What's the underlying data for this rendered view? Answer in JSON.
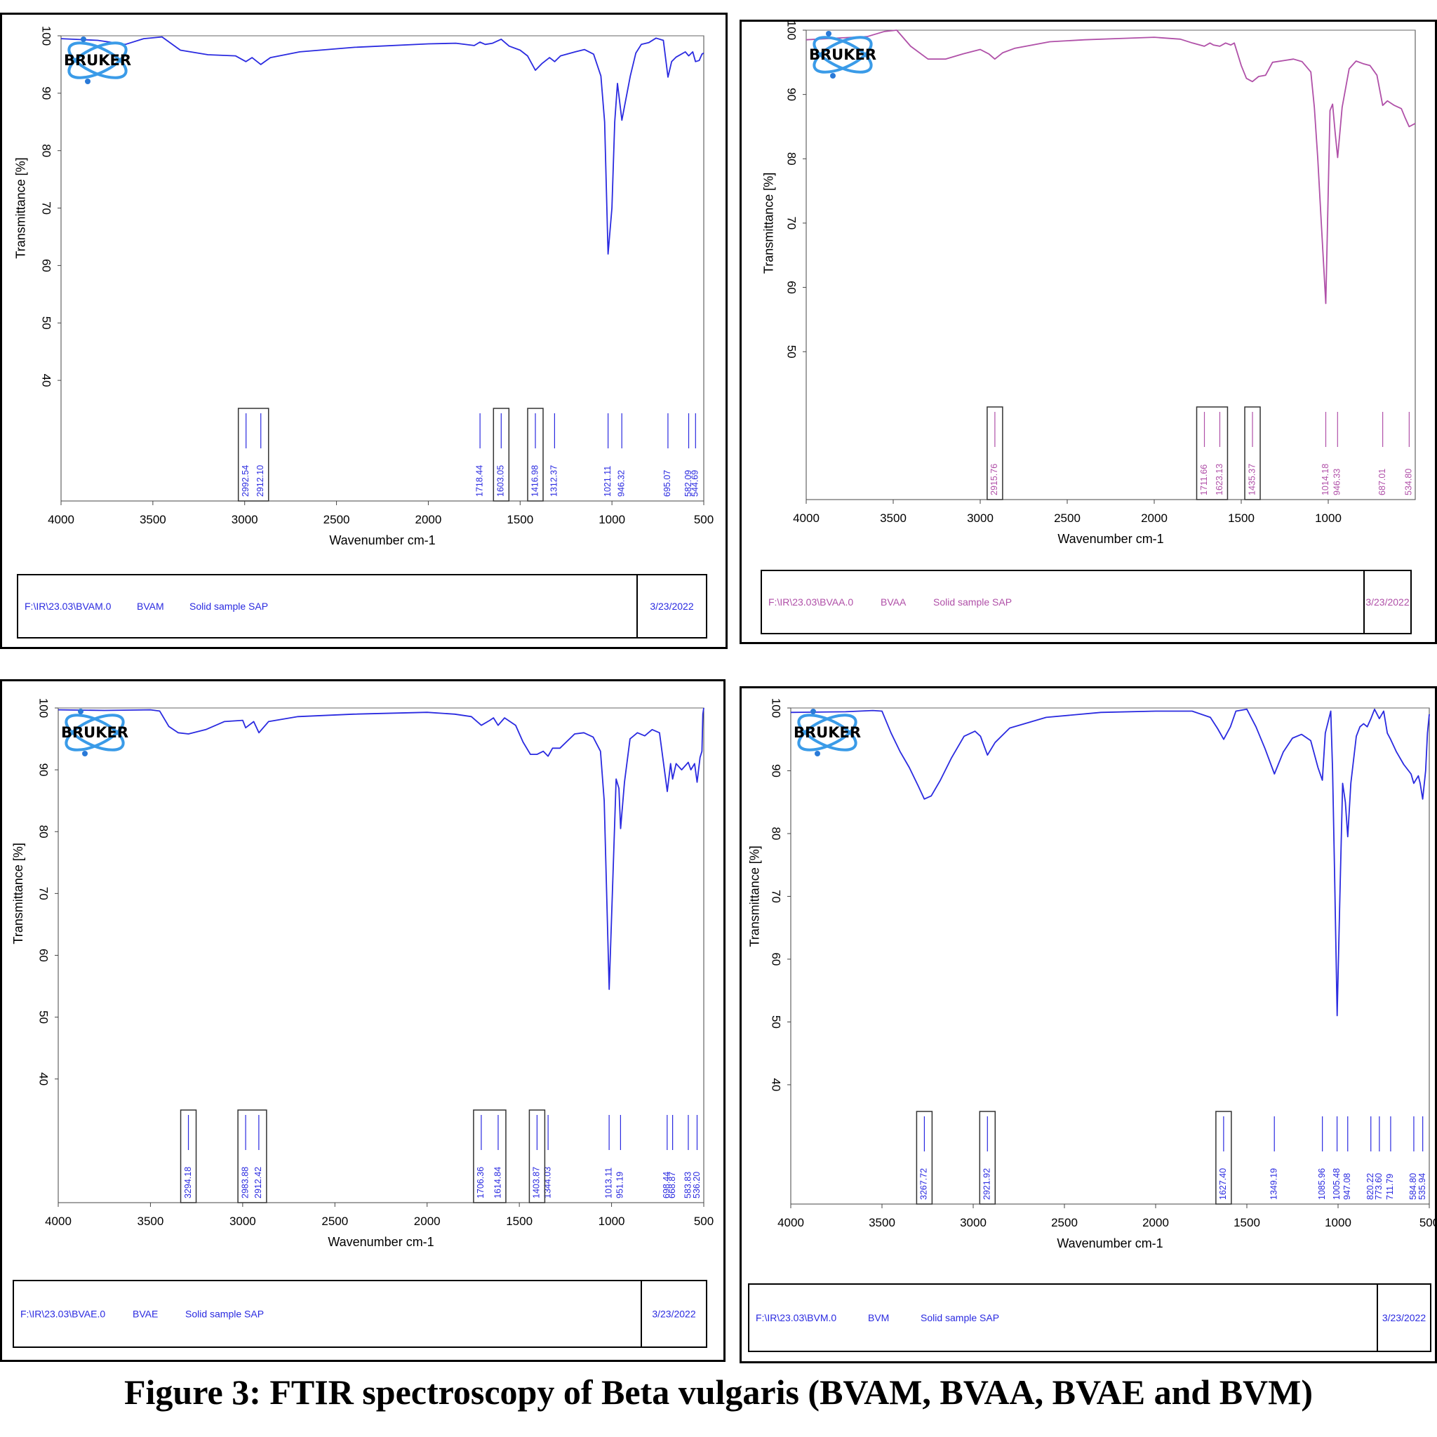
{
  "caption": "Figure 3: FTIR spectroscopy of Beta vulgaris (BVAM, BVAA, BVAE and BVM)",
  "logo_text": "BRUKER",
  "chart_data": [
    {
      "type": "line",
      "sample": "BVAM",
      "color": "#2a2ae0",
      "xlabel": "Wavenumber cm-1",
      "ylabel": "Transmittance [%]",
      "xlim": [
        4000,
        500
      ],
      "ylim": [
        19,
        100
      ],
      "x_ticks": [
        "4000",
        "3500",
        "3000",
        "2500",
        "2000",
        "1500",
        "1000",
        "500"
      ],
      "y_ticks": [
        "100",
        "90",
        "80",
        "70",
        "60",
        "50",
        "40"
      ],
      "series": [
        {
          "x": [
            4000,
            3800,
            3650,
            3550,
            3450,
            3350,
            3200,
            3050,
            2993,
            2960,
            2912,
            2860,
            2700,
            2400,
            2000,
            1850,
            1750,
            1719,
            1690,
            1650,
            1603,
            1560,
            1500,
            1460,
            1417,
            1380,
            1340,
            1312,
            1280,
            1200,
            1150,
            1100,
            1060,
            1040,
            1021,
            1000,
            985,
            970,
            946,
            930,
            900,
            870,
            840,
            800,
            760,
            720,
            695,
            675,
            650,
            600,
            582,
            560,
            545,
            525,
            510,
            500
          ],
          "y": [
            99.5,
            99.2,
            98.5,
            99.5,
            99.8,
            97.5,
            96.7,
            96.5,
            95.5,
            96.2,
            95,
            96.2,
            97.2,
            98,
            98.6,
            98.7,
            98.3,
            98.9,
            98.5,
            98.7,
            99.4,
            98.2,
            97.5,
            96.5,
            94,
            95.2,
            96.2,
            95.5,
            96.5,
            97.2,
            97.6,
            96.8,
            93,
            85,
            62,
            70,
            85,
            91.7,
            85.3,
            88,
            93,
            97,
            98.5,
            98.8,
            99.6,
            99.2,
            92.8,
            95.5,
            96.3,
            97.2,
            96.5,
            97.2,
            95.5,
            95.7,
            96.8,
            97
          ]
        }
      ],
      "peak_labels": [
        "2992.54",
        "2912.10",
        "1718.44",
        "1603.05",
        "1416.98",
        "1312.37",
        "1021.11",
        "946.32",
        "695.07",
        "582.09",
        "544.69"
      ],
      "peak_x": [
        2992.54,
        2912.1,
        1718.44,
        1603.05,
        1416.98,
        1312.37,
        1021.11,
        946.32,
        695.07,
        582.09,
        544.69
      ],
      "boxed_groups": [
        [
          "2992.54",
          "2912.10"
        ],
        [
          "1603.05"
        ],
        [
          "1416.98"
        ]
      ],
      "footer": {
        "path": "F:\\IR\\23.03\\BVAM.0",
        "sample": "BVAM",
        "description": "Solid sample SAP",
        "date": "3/23/2022"
      }
    },
    {
      "type": "line",
      "sample": "BVAA",
      "color": "#b050a8",
      "xlabel": "Wavenumber cm-1",
      "ylabel": "Transmittance [%]",
      "xlim": [
        4000,
        500
      ],
      "ylim": [
        27,
        100
      ],
      "x_ticks": [
        "4000",
        "3500",
        "3000",
        "2500",
        "2000",
        "1500",
        "1000"
      ],
      "y_ticks": [
        "100",
        "90",
        "80",
        "70",
        "60",
        "50"
      ],
      "series": [
        {
          "x": [
            4000,
            3800,
            3650,
            3550,
            3480,
            3400,
            3300,
            3200,
            3100,
            3000,
            2950,
            2916,
            2870,
            2800,
            2600,
            2400,
            2200,
            2000,
            1850,
            1780,
            1712,
            1680,
            1660,
            1623,
            1590,
            1560,
            1540,
            1500,
            1470,
            1436,
            1400,
            1360,
            1320,
            1250,
            1200,
            1150,
            1100,
            1080,
            1060,
            1040,
            1014,
            1000,
            990,
            975,
            960,
            946,
            920,
            880,
            840,
            800,
            760,
            720,
            687,
            660,
            620,
            580,
            560,
            535,
            500
          ],
          "y": [
            98.5,
            98.8,
            99,
            99.8,
            100,
            97.5,
            95.5,
            95.5,
            96.3,
            97,
            96.3,
            95.5,
            96.5,
            97.2,
            98.2,
            98.5,
            98.7,
            98.9,
            98.6,
            98,
            97.5,
            98,
            97.7,
            97.5,
            98,
            97.7,
            98,
            94.5,
            92.5,
            92,
            92.8,
            93,
            95,
            95.3,
            95.5,
            95.1,
            93.5,
            88,
            80,
            70,
            57.5,
            75,
            87.5,
            88.5,
            84,
            80.2,
            88,
            94,
            95.2,
            94.8,
            94.5,
            93,
            88.3,
            89,
            88.3,
            87.8,
            86.5,
            85,
            85.5
          ]
        }
      ],
      "peak_labels": [
        "2915.76",
        "1711.66",
        "1623.13",
        "1435.37",
        "1014.18",
        "946.33",
        "687.01",
        "534.80"
      ],
      "peak_x": [
        2915.76,
        1711.66,
        1623.13,
        1435.37,
        1014.18,
        946.33,
        687.01,
        534.8
      ],
      "boxed_groups": [
        [
          "2915.76"
        ],
        [
          "1711.66",
          "1623.13"
        ],
        [
          "1435.37"
        ]
      ],
      "footer": {
        "path": "F:\\IR\\23.03\\BVAA.0",
        "sample": "BVAA",
        "description": "Solid sample SAP",
        "date": "3/23/2022"
      }
    },
    {
      "type": "line",
      "sample": "BVAE",
      "color": "#2a2ae0",
      "xlabel": "Wavenumber cm-1",
      "ylabel": "Transmittance [%]",
      "xlim": [
        4000,
        500
      ],
      "ylim": [
        20,
        100
      ],
      "x_ticks": [
        "4000",
        "3500",
        "3000",
        "2500",
        "2000",
        "1500",
        "1000",
        "500"
      ],
      "y_ticks": [
        "100",
        "90",
        "80",
        "70",
        "60",
        "50",
        "40"
      ],
      "series": [
        {
          "x": [
            4000,
            3750,
            3500,
            3450,
            3400,
            3350,
            3294,
            3200,
            3100,
            3000,
            2984,
            2940,
            2912,
            2860,
            2700,
            2400,
            2000,
            1850,
            1760,
            1706,
            1660,
            1640,
            1615,
            1580,
            1520,
            1480,
            1440,
            1404,
            1370,
            1344,
            1320,
            1280,
            1200,
            1150,
            1100,
            1060,
            1040,
            1013,
            990,
            975,
            960,
            951,
            930,
            900,
            860,
            820,
            780,
            740,
            698,
            680,
            669,
            650,
            620,
            584,
            570,
            550,
            536,
            520,
            510,
            505,
            500
          ],
          "y": [
            99.7,
            99.6,
            99.7,
            99.5,
            97,
            96,
            95.8,
            96.5,
            97.8,
            98,
            96.8,
            97.8,
            96,
            97.8,
            98.6,
            99,
            99.3,
            99,
            98.6,
            97.2,
            98,
            98.4,
            97.2,
            98.4,
            97.2,
            94.5,
            92.5,
            92.5,
            93,
            92.2,
            93.5,
            93.5,
            95.8,
            96,
            95.3,
            93,
            85,
            54.5,
            75,
            88.5,
            87,
            80.5,
            88,
            95,
            96,
            95.5,
            96.5,
            96,
            86.5,
            91,
            88.5,
            91,
            90,
            91.2,
            90,
            91,
            88,
            92,
            93,
            99,
            100
          ]
        }
      ],
      "peak_labels": [
        "3294.18",
        "2983.88",
        "2912.42",
        "1706.36",
        "1614.84",
        "1403.87",
        "1344.03",
        "1013.11",
        "951.19",
        "698.44",
        "668.87",
        "583.83",
        "536.20"
      ],
      "peak_x": [
        3294.18,
        2983.88,
        2912.42,
        1706.36,
        1614.84,
        1403.87,
        1344.03,
        1013.11,
        951.19,
        698.44,
        668.87,
        583.83,
        536.2
      ],
      "boxed_groups": [
        [
          "3294.18"
        ],
        [
          "2983.88",
          "2912.42"
        ],
        [
          "1706.36",
          "1614.84"
        ],
        [
          "1403.87"
        ]
      ],
      "footer": {
        "path": "F:\\IR\\23.03\\BVAE.0",
        "sample": "BVAE",
        "description": "Solid sample SAP",
        "date": "3/23/2022"
      }
    },
    {
      "type": "line",
      "sample": "BVM",
      "color": "#2a2ae0",
      "xlabel": "Wavenumber cm-1",
      "ylabel": "Transmittance [%]",
      "xlim": [
        4000,
        500
      ],
      "ylim": [
        21,
        100
      ],
      "x_ticks": [
        "4000",
        "3500",
        "3000",
        "2500",
        "2000",
        "1500",
        "1000",
        "500"
      ],
      "y_ticks": [
        "100",
        "90",
        "80",
        "70",
        "60",
        "50",
        "40"
      ],
      "series": [
        {
          "x": [
            4000,
            3700,
            3550,
            3500,
            3450,
            3400,
            3350,
            3300,
            3268,
            3230,
            3180,
            3120,
            3050,
            2990,
            2960,
            2922,
            2880,
            2800,
            2600,
            2300,
            2000,
            1800,
            1700,
            1660,
            1627,
            1590,
            1560,
            1500,
            1450,
            1400,
            1349,
            1300,
            1250,
            1200,
            1150,
            1110,
            1086,
            1070,
            1040,
            1030,
            1020,
            1005,
            990,
            975,
            960,
            947,
            930,
            900,
            880,
            860,
            840,
            820,
            800,
            774,
            750,
            730,
            712,
            680,
            640,
            600,
            585,
            560,
            550,
            536,
            520,
            510,
            500
          ],
          "y": [
            99.3,
            99.4,
            99.6,
            99.5,
            96,
            93,
            90.5,
            87.5,
            85.5,
            86,
            88.5,
            92,
            95.5,
            96.3,
            95.5,
            92.5,
            94.5,
            96.8,
            98.5,
            99.3,
            99.5,
            99.5,
            98.5,
            96.7,
            95,
            97,
            99.5,
            99.8,
            97,
            93.5,
            89.5,
            93,
            95.2,
            95.8,
            94.8,
            90.5,
            88.5,
            96,
            99.5,
            90,
            75,
            51,
            70,
            88,
            85,
            79.5,
            88,
            95.5,
            97,
            97.5,
            97,
            98.3,
            99.8,
            98.3,
            99.5,
            96,
            95,
            93,
            91,
            89.5,
            88,
            89.2,
            88,
            85.5,
            90,
            96,
            99
          ]
        }
      ],
      "peak_labels": [
        "3267.72",
        "2921.92",
        "1627.40",
        "1349.19",
        "1085.96",
        "1005.48",
        "947.08",
        "820.22",
        "773.60",
        "711.79",
        "584.80",
        "535.94"
      ],
      "peak_x": [
        3267.72,
        2921.92,
        1627.4,
        1349.19,
        1085.96,
        1005.48,
        947.08,
        820.22,
        773.6,
        711.79,
        584.8,
        535.94
      ],
      "boxed_groups": [
        [
          "3267.72"
        ],
        [
          "2921.92"
        ],
        [
          "1627.40"
        ]
      ],
      "footer": {
        "path": "F:\\IR\\23.03\\BVM.0",
        "sample": "BVM",
        "description": "Solid sample SAP",
        "date": "3/23/2022"
      }
    }
  ]
}
